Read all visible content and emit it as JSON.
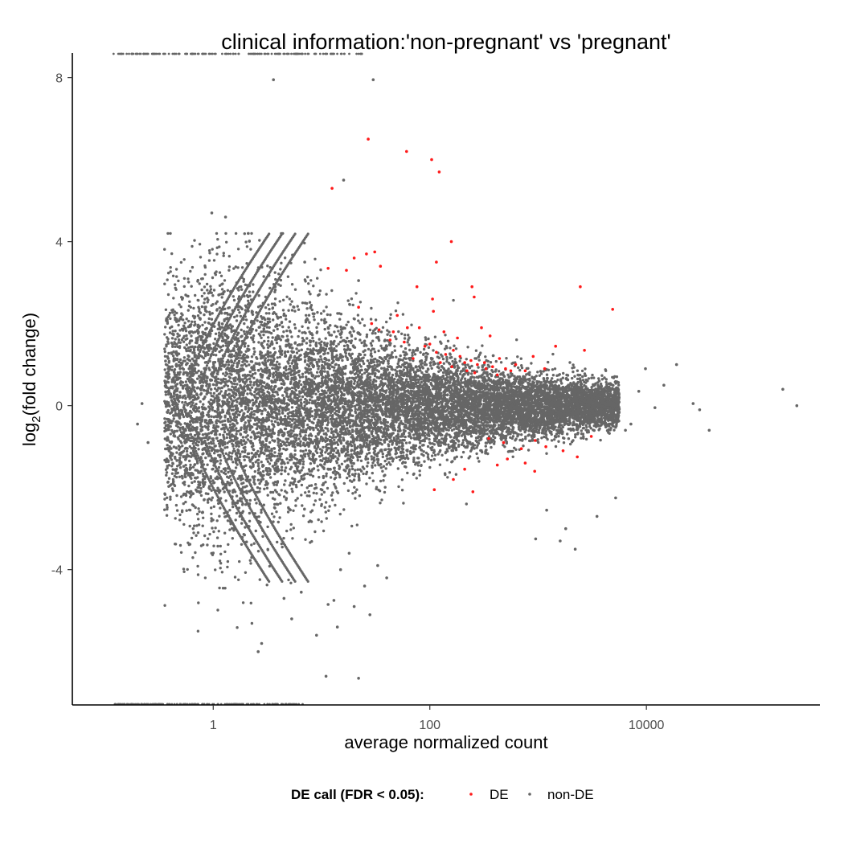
{
  "chart_data": {
    "type": "scatter",
    "title": "clinical information:'non-pregnant' vs 'pregnant'",
    "xlabel": "average normalized count",
    "ylabel_main": "log",
    "ylabel_sub": "2",
    "ylabel_rest": "(fold change)",
    "x_scale": "log10",
    "xlim": [
      0.05,
      400000
    ],
    "ylim": [
      -7.3,
      8.6
    ],
    "x_ticks": [
      1,
      100,
      10000
    ],
    "x_tick_labels": [
      "1",
      "100",
      "10000"
    ],
    "y_ticks": [
      -4,
      0,
      4,
      8
    ],
    "y_tick_labels": [
      "-4",
      "0",
      "4",
      "8"
    ],
    "grid": false,
    "legend": {
      "title": "DE call (FDR < 0.05):",
      "position": "bottom",
      "entries": [
        {
          "label": "DE",
          "color": "#ff1a1a"
        },
        {
          "label": "non-DE",
          "color": "#666666"
        }
      ]
    },
    "colors": {
      "DE": "#ff1a1a",
      "nonDE": "#666666"
    },
    "series": [
      {
        "name": "DE",
        "points": [
          [
            27,
            6.5
          ],
          [
            61,
            6.2
          ],
          [
            104,
            6.0
          ],
          [
            122,
            5.7
          ],
          [
            12.5,
            5.3
          ],
          [
            158,
            4.0
          ],
          [
            31,
            3.75
          ],
          [
            26,
            3.7
          ],
          [
            20,
            3.6
          ],
          [
            11.5,
            3.35
          ],
          [
            17,
            3.3
          ],
          [
            35,
            3.4
          ],
          [
            115,
            3.5
          ],
          [
            76,
            2.9
          ],
          [
            245,
            2.9
          ],
          [
            2450,
            2.9
          ],
          [
            106,
            2.6
          ],
          [
            257,
            2.65
          ],
          [
            22,
            2.4
          ],
          [
            50,
            2.2
          ],
          [
            108,
            2.3
          ],
          [
            4880,
            2.35
          ],
          [
            300,
            1.9
          ],
          [
            360,
            1.7
          ],
          [
            29,
            2.0
          ],
          [
            62,
            1.9
          ],
          [
            34,
            1.85
          ],
          [
            46,
            1.8
          ],
          [
            80,
            1.9
          ],
          [
            135,
            1.8
          ],
          [
            180,
            1.65
          ],
          [
            43,
            1.6
          ],
          [
            58,
            1.55
          ],
          [
            90,
            1.45
          ],
          [
            100,
            1.5
          ],
          [
            115,
            1.3
          ],
          [
            140,
            1.25
          ],
          [
            165,
            1.35
          ],
          [
            190,
            1.2
          ],
          [
            210,
            1.05
          ],
          [
            240,
            1.1
          ],
          [
            275,
            1.0
          ],
          [
            320,
            1.05
          ],
          [
            380,
            0.95
          ],
          [
            440,
            1.15
          ],
          [
            500,
            0.9
          ],
          [
            620,
            1.0
          ],
          [
            760,
            0.85
          ],
          [
            900,
            1.2
          ],
          [
            1150,
            0.9
          ],
          [
            1450,
            1.45
          ],
          [
            2680,
            1.35
          ],
          [
            70,
            1.15
          ],
          [
            125,
            1.05
          ],
          [
            160,
            0.95
          ],
          [
            220,
            0.85
          ],
          [
            260,
            0.8
          ],
          [
            330,
            0.9
          ],
          [
            420,
            0.75
          ],
          [
            560,
            0.85
          ],
          [
            350,
            -0.8
          ],
          [
            480,
            -0.9
          ],
          [
            700,
            -1.05
          ],
          [
            940,
            -0.85
          ],
          [
            1180,
            -1.0
          ],
          [
            520,
            -1.3
          ],
          [
            760,
            -1.4
          ],
          [
            420,
            -1.45
          ],
          [
            930,
            -1.6
          ],
          [
            1700,
            -1.1
          ],
          [
            2300,
            -1.25
          ],
          [
            3100,
            -0.75
          ],
          [
            210,
            -1.55
          ],
          [
            165,
            -1.8
          ],
          [
            110,
            -2.05
          ],
          [
            250,
            -2.1
          ]
        ]
      },
      {
        "name": "non-DE",
        "points": [
          [
            0.97,
            4.7
          ],
          [
            1.3,
            4.6
          ],
          [
            3.6,
            7.95
          ],
          [
            30,
            7.95
          ],
          [
            16,
            5.5
          ],
          [
            7.0,
            3.5
          ],
          [
            22,
            3.05
          ],
          [
            2.0,
            0.05
          ],
          [
            0.22,
            0.05
          ],
          [
            0.2,
            -0.45
          ],
          [
            0.25,
            -0.9
          ],
          [
            19000,
            1.0
          ],
          [
            27000,
            0.05
          ],
          [
            31000,
            -0.1
          ],
          [
            38000,
            -0.6
          ],
          [
            182000,
            0.4
          ],
          [
            245000,
            0.0
          ],
          [
            14500,
            0.5
          ],
          [
            12000,
            -0.05
          ],
          [
            9800,
            0.9
          ],
          [
            8500,
            0.35
          ],
          [
            7200,
            -0.45
          ],
          [
            6400,
            -0.6
          ],
          [
            5200,
            -2.25
          ],
          [
            3500,
            -2.7
          ],
          [
            2200,
            -3.5
          ],
          [
            1800,
            -3.0
          ],
          [
            1600,
            -3.3
          ],
          [
            1200,
            -2.55
          ],
          [
            950,
            -3.25
          ],
          [
            2.8,
            -5.8
          ],
          [
            2.6,
            -6.0
          ],
          [
            5.3,
            -5.2
          ],
          [
            11,
            -6.6
          ],
          [
            22,
            -6.65
          ],
          [
            14,
            -5.4
          ],
          [
            9,
            -5.6
          ],
          [
            28,
            -5.1
          ],
          [
            20,
            -4.9
          ],
          [
            15,
            -4.0
          ],
          [
            40,
            -4.2
          ],
          [
            25,
            -4.4
          ],
          [
            33,
            -3.9
          ],
          [
            18,
            -3.6
          ],
          [
            4.5,
            -4.7
          ],
          [
            6.5,
            -4.55
          ],
          [
            13,
            -4.75
          ],
          [
            11.5,
            -4.85
          ]
        ]
      }
    ],
    "cloud": {
      "series": "non-DE",
      "description_level": "dense grey point cloud",
      "center_log10x": 1.6,
      "rows_log10x": [
        -0.3,
        0.0,
        0.3,
        0.6,
        0.9,
        1.2,
        1.5,
        1.8,
        2.1,
        2.4,
        2.7,
        3.0,
        3.3,
        3.6
      ],
      "spread_y": [
        1.4,
        1.7,
        1.6,
        1.4,
        1.2,
        1.0,
        0.85,
        0.7,
        0.6,
        0.5,
        0.42,
        0.38,
        0.33,
        0.28
      ]
    },
    "edge_bands": {
      "upper_start": [
        0.6,
        0.6
      ],
      "upper_end": [
        3.3,
        4.2
      ],
      "lower_start": [
        0.6,
        -0.6
      ],
      "lower_end": [
        3.3,
        -4.3
      ],
      "band_offsets": [
        0.0,
        0.12,
        0.24,
        0.36
      ]
    },
    "clipped": {
      "top_x_range": [
        0.12,
        25
      ],
      "bottom_x_range": [
        0.12,
        7
      ]
    }
  }
}
